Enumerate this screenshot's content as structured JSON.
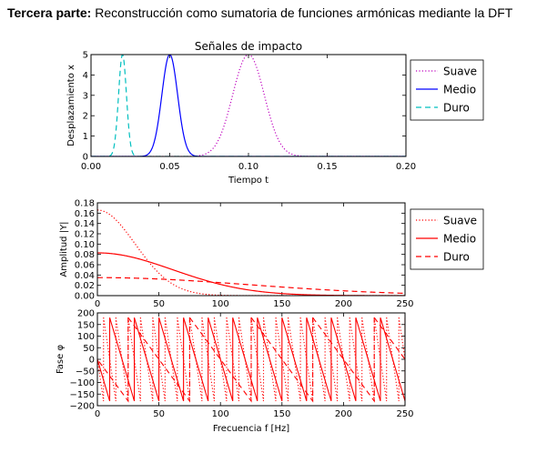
{
  "heading": {
    "bold": "Tercera parte:",
    "text": " Reconstrucción como sumatoria de funciones armónicas mediante la DFT"
  },
  "chart_data": [
    {
      "type": "line",
      "title": "Señales de impacto",
      "xlabel": "Tiempo t",
      "ylabel": "Desplazamiento x",
      "xlim": [
        0.0,
        0.2
      ],
      "ylim": [
        0,
        5
      ],
      "xticks": [
        "0.00",
        "0.05",
        "0.10",
        "0.15",
        "0.20"
      ],
      "yticks": [
        "0",
        "1",
        "2",
        "3",
        "4",
        "5"
      ],
      "legend_position": "outside-right-top",
      "grid": false,
      "series": [
        {
          "name": "Suave",
          "color": "#bf00bf",
          "style": "dotted",
          "shape": "gaussian_pulse",
          "center": 0.1,
          "peak": 5,
          "width": 0.01
        },
        {
          "name": "Medio",
          "color": "#0000ff",
          "style": "solid",
          "shape": "gaussian_pulse",
          "center": 0.05,
          "peak": 5,
          "width": 0.005
        },
        {
          "name": "Duro",
          "color": "#00bfbf",
          "style": "dashed",
          "shape": "gaussian_pulse",
          "center": 0.02,
          "peak": 5,
          "width": 0.0025
        }
      ]
    },
    {
      "type": "line",
      "title": "",
      "xlabel": "",
      "ylabel": "Amplitud |Y|",
      "xlim": [
        0,
        250
      ],
      "ylim": [
        0,
        0.18
      ],
      "xticks": [
        "0",
        "50",
        "100",
        "150",
        "200",
        "250"
      ],
      "yticks": [
        "0.00",
        "0.02",
        "0.04",
        "0.06",
        "0.08",
        "0.10",
        "0.12",
        "0.14",
        "0.16",
        "0.18"
      ],
      "legend_position": "outside-right-top",
      "grid": false,
      "series": [
        {
          "name": "Suave",
          "color": "#ff0000",
          "style": "dotted",
          "amplitude_at_zero": 0.166,
          "half_width_hz": 36
        },
        {
          "name": "Medio",
          "color": "#ff0000",
          "style": "solid",
          "amplitude_at_zero": 0.083,
          "half_width_hz": 72
        },
        {
          "name": "Duro",
          "color": "#ff0000",
          "style": "dashed",
          "amplitude_at_zero": 0.035,
          "half_width_hz": 145
        }
      ]
    },
    {
      "type": "line",
      "title": "",
      "xlabel": "Frecuencia f [Hz]",
      "ylabel": "Fase φ",
      "xlim": [
        0,
        250
      ],
      "ylim": [
        -200,
        200
      ],
      "xticks": [
        "0",
        "50",
        "100",
        "150",
        "200",
        "250"
      ],
      "yticks": [
        "−200",
        "−150",
        "−100",
        "−50",
        "0",
        "50",
        "100",
        "150",
        "200"
      ],
      "grid": false,
      "series": [
        {
          "name": "Suave",
          "color": "#ff0000",
          "style": "dotted",
          "wrap_period_hz": 10
        },
        {
          "name": "Medio",
          "color": "#ff0000",
          "style": "solid",
          "wrap_period_hz": 20
        },
        {
          "name": "Duro",
          "color": "#ff0000",
          "style": "dashed",
          "wrap_period_hz": 50
        }
      ]
    }
  ]
}
